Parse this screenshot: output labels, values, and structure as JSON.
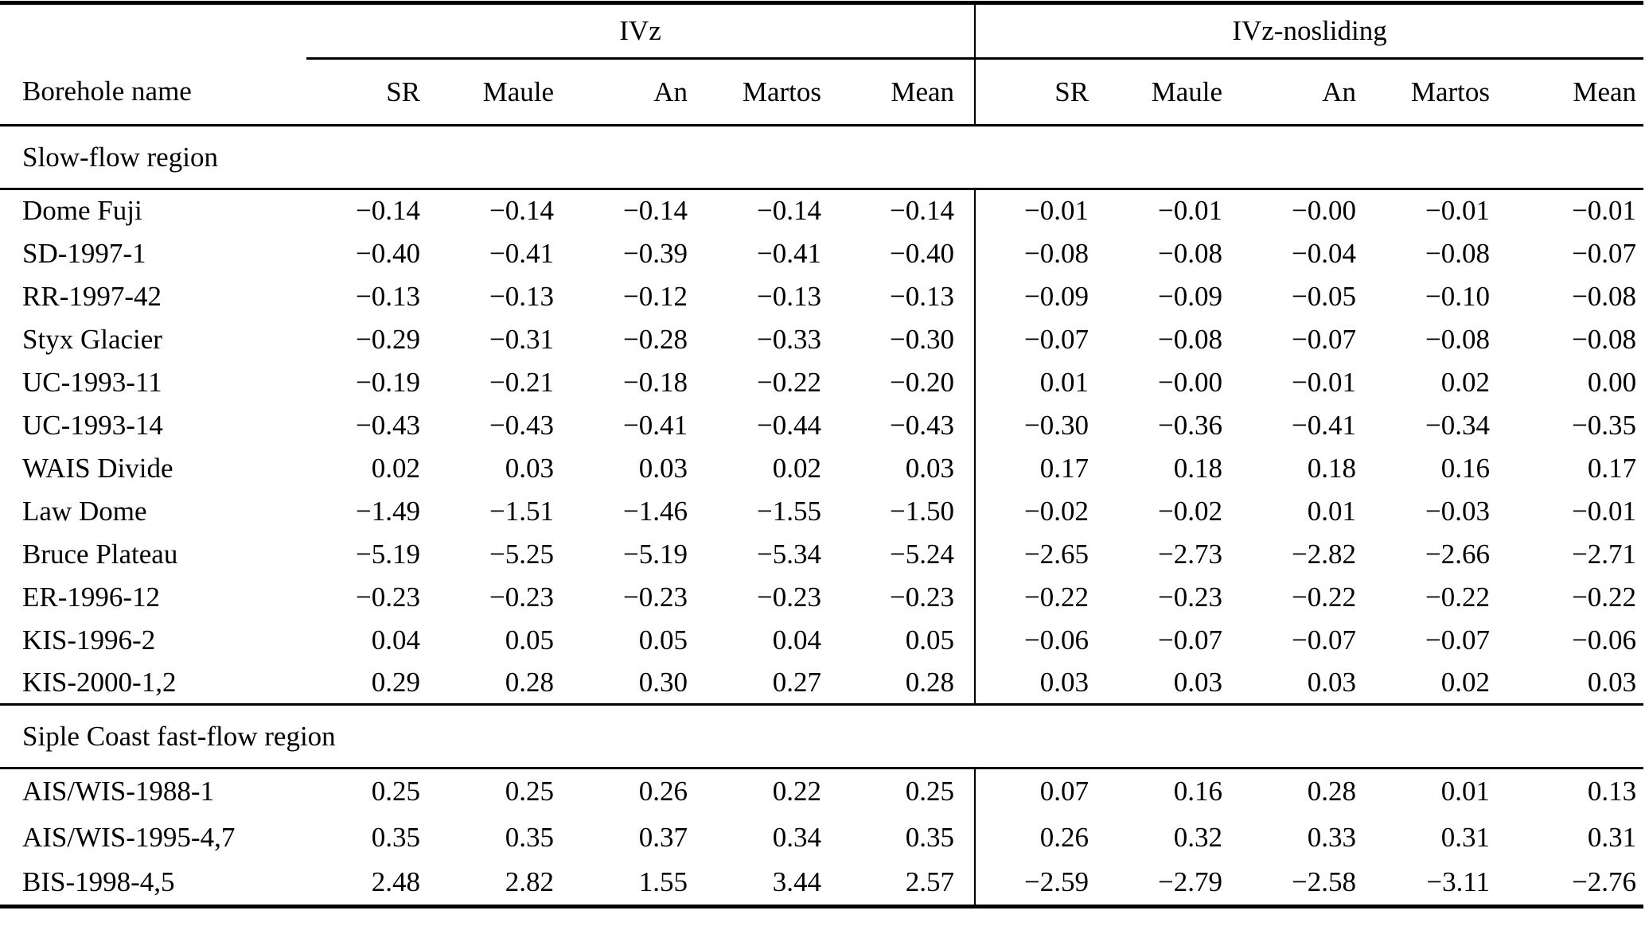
{
  "table": {
    "name_header": "Borehole name",
    "groups": [
      {
        "label": "IVz",
        "columns": [
          "SR",
          "Maule",
          "An",
          "Martos",
          "Mean"
        ]
      },
      {
        "label": "IVz-nosliding",
        "columns": [
          "SR",
          "Maule",
          "An",
          "Martos",
          "Mean"
        ]
      }
    ],
    "sections": [
      {
        "label": "Slow-flow region",
        "rows": [
          {
            "name": "Dome Fuji",
            "values": [
              "−0.14",
              "−0.14",
              "−0.14",
              "−0.14",
              "−0.14",
              "−0.01",
              "−0.01",
              "−0.00",
              "−0.01",
              "−0.01"
            ]
          },
          {
            "name": "SD-1997-1",
            "values": [
              "−0.40",
              "−0.41",
              "−0.39",
              "−0.41",
              "−0.40",
              "−0.08",
              "−0.08",
              "−0.04",
              "−0.08",
              "−0.07"
            ]
          },
          {
            "name": "RR-1997-42",
            "values": [
              "−0.13",
              "−0.13",
              "−0.12",
              "−0.13",
              "−0.13",
              "−0.09",
              "−0.09",
              "−0.05",
              "−0.10",
              "−0.08"
            ]
          },
          {
            "name": "Styx Glacier",
            "values": [
              "−0.29",
              "−0.31",
              "−0.28",
              "−0.33",
              "−0.30",
              "−0.07",
              "−0.08",
              "−0.07",
              "−0.08",
              "−0.08"
            ]
          },
          {
            "name": "UC-1993-11",
            "values": [
              "−0.19",
              "−0.21",
              "−0.18",
              "−0.22",
              "−0.20",
              "0.01",
              "−0.00",
              "−0.01",
              "0.02",
              "0.00"
            ]
          },
          {
            "name": "UC-1993-14",
            "values": [
              "−0.43",
              "−0.43",
              "−0.41",
              "−0.44",
              "−0.43",
              "−0.30",
              "−0.36",
              "−0.41",
              "−0.34",
              "−0.35"
            ]
          },
          {
            "name": "WAIS Divide",
            "values": [
              "0.02",
              "0.03",
              "0.03",
              "0.02",
              "0.03",
              "0.17",
              "0.18",
              "0.18",
              "0.16",
              "0.17"
            ]
          },
          {
            "name": "Law Dome",
            "values": [
              "−1.49",
              "−1.51",
              "−1.46",
              "−1.55",
              "−1.50",
              "−0.02",
              "−0.02",
              "0.01",
              "−0.03",
              "−0.01"
            ]
          },
          {
            "name": "Bruce Plateau",
            "values": [
              "−5.19",
              "−5.25",
              "−5.19",
              "−5.34",
              "−5.24",
              "−2.65",
              "−2.73",
              "−2.82",
              "−2.66",
              "−2.71"
            ]
          },
          {
            "name": "ER-1996-12",
            "values": [
              "−0.23",
              "−0.23",
              "−0.23",
              "−0.23",
              "−0.23",
              "−0.22",
              "−0.23",
              "−0.22",
              "−0.22",
              "−0.22"
            ]
          },
          {
            "name": "KIS-1996-2",
            "values": [
              "0.04",
              "0.05",
              "0.05",
              "0.04",
              "0.05",
              "−0.06",
              "−0.07",
              "−0.07",
              "−0.07",
              "−0.06"
            ]
          },
          {
            "name": "KIS-2000-1,2",
            "values": [
              "0.29",
              "0.28",
              "0.30",
              "0.27",
              "0.28",
              "0.03",
              "0.03",
              "0.03",
              "0.02",
              "0.03"
            ]
          }
        ]
      },
      {
        "label": "Siple Coast fast-flow region",
        "rows": [
          {
            "name": "AIS/WIS-1988-1",
            "values": [
              "0.25",
              "0.25",
              "0.26",
              "0.22",
              "0.25",
              "0.07",
              "0.16",
              "0.28",
              "0.01",
              "0.13"
            ]
          },
          {
            "name": "AIS/WIS-1995-4,7",
            "values": [
              "0.35",
              "0.35",
              "0.37",
              "0.34",
              "0.35",
              "0.26",
              "0.32",
              "0.33",
              "0.31",
              "0.31"
            ]
          },
          {
            "name": "BIS-1998-4,5",
            "values": [
              "2.48",
              "2.82",
              "1.55",
              "3.44",
              "2.57",
              "−2.59",
              "−2.79",
              "−2.58",
              "−3.11",
              "−2.76"
            ]
          }
        ]
      }
    ]
  }
}
